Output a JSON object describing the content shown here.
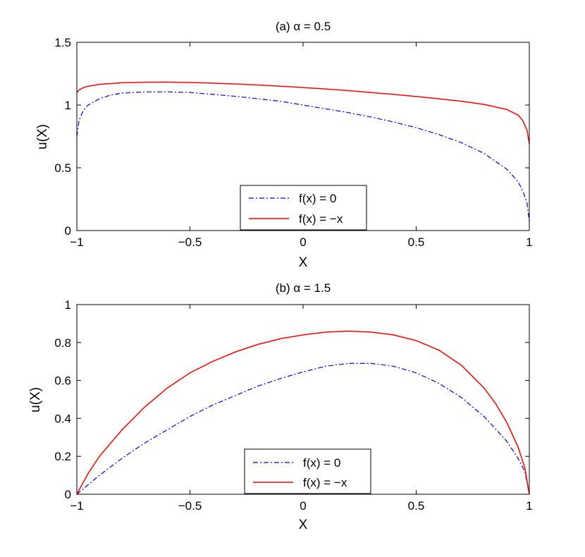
{
  "chart_data": [
    {
      "type": "line",
      "title": "(a) α = 0.5",
      "xlabel": "X",
      "ylabel": "u(X)",
      "xlim": [
        -1,
        1
      ],
      "ylim": [
        0,
        1.5
      ],
      "x_ticks": [
        -1,
        -0.5,
        0,
        0.5,
        1
      ],
      "x_tick_labels": [
        "−1",
        "−0.5",
        "0",
        "0.5",
        "1"
      ],
      "y_ticks": [
        0,
        0.5,
        1,
        1.5
      ],
      "y_tick_labels": [
        "0",
        "0.5",
        "1",
        "1.5"
      ],
      "grid": false,
      "legend_position": "bottom-center",
      "series": [
        {
          "name": "f(x) = 0",
          "color": "#0000ff",
          "style": "dash-dot",
          "x": [
            -1.0,
            -0.99,
            -0.97,
            -0.95,
            -0.9,
            -0.85,
            -0.8,
            -0.7,
            -0.6,
            -0.5,
            -0.4,
            -0.3,
            -0.2,
            -0.1,
            0.0,
            0.1,
            0.2,
            0.3,
            0.4,
            0.5,
            0.6,
            0.7,
            0.8,
            0.9,
            0.95,
            0.97,
            0.99,
            1.0
          ],
          "y": [
            0.75,
            0.88,
            0.96,
            1.0,
            1.05,
            1.08,
            1.095,
            1.105,
            1.105,
            1.1,
            1.085,
            1.07,
            1.05,
            1.03,
            1.0,
            0.97,
            0.94,
            0.905,
            0.865,
            0.82,
            0.765,
            0.7,
            0.615,
            0.49,
            0.39,
            0.32,
            0.22,
            0.07
          ]
        },
        {
          "name": "f(x) = −x",
          "color": "#ff0000",
          "style": "solid",
          "x": [
            -1.0,
            -0.99,
            -0.97,
            -0.95,
            -0.9,
            -0.8,
            -0.7,
            -0.6,
            -0.5,
            -0.4,
            -0.3,
            -0.2,
            -0.1,
            0.0,
            0.1,
            0.2,
            0.3,
            0.4,
            0.5,
            0.6,
            0.7,
            0.8,
            0.9,
            0.95,
            0.97,
            0.99,
            1.0
          ],
          "y": [
            1.1,
            1.12,
            1.14,
            1.15,
            1.165,
            1.178,
            1.182,
            1.183,
            1.18,
            1.175,
            1.168,
            1.16,
            1.15,
            1.14,
            1.128,
            1.115,
            1.1,
            1.085,
            1.068,
            1.05,
            1.03,
            1.005,
            0.965,
            0.92,
            0.88,
            0.8,
            0.69
          ]
        }
      ]
    },
    {
      "type": "line",
      "title": "(b) α = 1.5",
      "xlabel": "X",
      "ylabel": "u(X)",
      "xlim": [
        -1,
        1
      ],
      "ylim": [
        0,
        1
      ],
      "x_ticks": [
        -1,
        -0.5,
        0,
        0.5,
        1
      ],
      "x_tick_labels": [
        "−1",
        "−0.5",
        "0",
        "0.5",
        "1"
      ],
      "y_ticks": [
        0,
        0.2,
        0.4,
        0.6,
        0.8,
        1
      ],
      "y_tick_labels": [
        "0",
        "0.2",
        "0.4",
        "0.6",
        "0.8",
        "1"
      ],
      "grid": false,
      "legend_position": "bottom-center",
      "series": [
        {
          "name": "f(x) = 0",
          "color": "#0000ff",
          "style": "dash-dot",
          "x": [
            -1.0,
            -0.95,
            -0.9,
            -0.8,
            -0.7,
            -0.6,
            -0.5,
            -0.4,
            -0.3,
            -0.2,
            -0.1,
            0.0,
            0.1,
            0.2,
            0.3,
            0.4,
            0.5,
            0.6,
            0.7,
            0.8,
            0.9,
            0.95,
            0.98,
            1.0
          ],
          "y": [
            0.0,
            0.05,
            0.1,
            0.19,
            0.27,
            0.34,
            0.41,
            0.47,
            0.52,
            0.57,
            0.61,
            0.645,
            0.675,
            0.69,
            0.69,
            0.675,
            0.64,
            0.585,
            0.51,
            0.41,
            0.28,
            0.19,
            0.12,
            0.0
          ]
        },
        {
          "name": "f(x) = −x",
          "color": "#ff0000",
          "style": "solid",
          "x": [
            -1.0,
            -0.95,
            -0.9,
            -0.8,
            -0.7,
            -0.6,
            -0.5,
            -0.4,
            -0.3,
            -0.2,
            -0.1,
            0.0,
            0.1,
            0.2,
            0.3,
            0.4,
            0.5,
            0.6,
            0.7,
            0.8,
            0.85,
            0.9,
            0.95,
            0.98,
            1.0
          ],
          "y": [
            0.0,
            0.11,
            0.2,
            0.34,
            0.46,
            0.56,
            0.64,
            0.7,
            0.75,
            0.79,
            0.82,
            0.84,
            0.855,
            0.86,
            0.855,
            0.84,
            0.81,
            0.76,
            0.68,
            0.56,
            0.48,
            0.38,
            0.25,
            0.14,
            0.0
          ]
        }
      ]
    }
  ]
}
